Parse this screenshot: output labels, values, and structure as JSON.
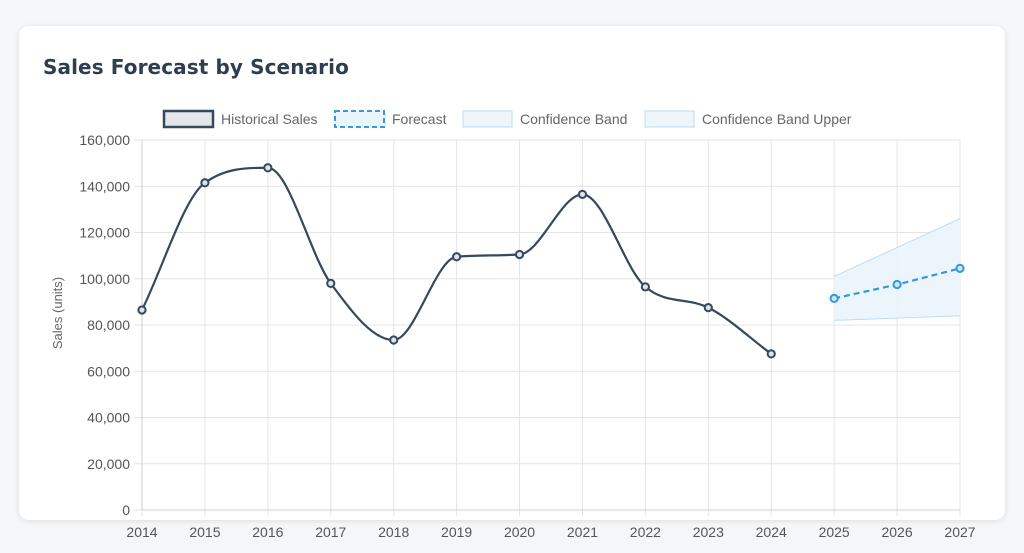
{
  "title": "Sales Forecast by Scenario",
  "chart_data": {
    "type": "line",
    "title": "Sales Forecast by Scenario",
    "xlabel": "",
    "ylabel": "Sales (units)",
    "ylim": [
      0,
      160000
    ],
    "y_ticks": [
      0,
      20000,
      40000,
      60000,
      80000,
      100000,
      120000,
      140000,
      160000
    ],
    "y_tick_labels": [
      "0",
      "20,000",
      "40,000",
      "60,000",
      "80,000",
      "100,000",
      "120,000",
      "140,000",
      "160,000"
    ],
    "categories": [
      "2014",
      "2015",
      "2016",
      "2017",
      "2018",
      "2019",
      "2020",
      "2021",
      "2022",
      "2023",
      "2024",
      "2025",
      "2026",
      "2027"
    ],
    "grid": true,
    "legend_position": "top",
    "series": [
      {
        "name": "Historical Sales",
        "style": "solid",
        "color": "#34495e",
        "values": [
          86500,
          141500,
          148000,
          98000,
          73500,
          109500,
          110500,
          136500,
          96500,
          87500,
          67500,
          null,
          null,
          null
        ]
      },
      {
        "name": "Forecast",
        "style": "dashed",
        "color": "#3498db",
        "values": [
          null,
          null,
          null,
          null,
          null,
          null,
          null,
          null,
          null,
          null,
          null,
          91500,
          97500,
          104500
        ]
      },
      {
        "name": "Confidence Band",
        "style": "band-lower",
        "color": "#bcdcf3",
        "values": [
          null,
          null,
          null,
          null,
          null,
          null,
          null,
          null,
          null,
          null,
          null,
          82000,
          83000,
          84000
        ]
      },
      {
        "name": "Confidence Band Upper",
        "style": "band-upper",
        "color": "#bcdcf3",
        "values": [
          null,
          null,
          null,
          null,
          null,
          null,
          null,
          null,
          null,
          null,
          null,
          101000,
          113500,
          126000
        ]
      }
    ]
  }
}
